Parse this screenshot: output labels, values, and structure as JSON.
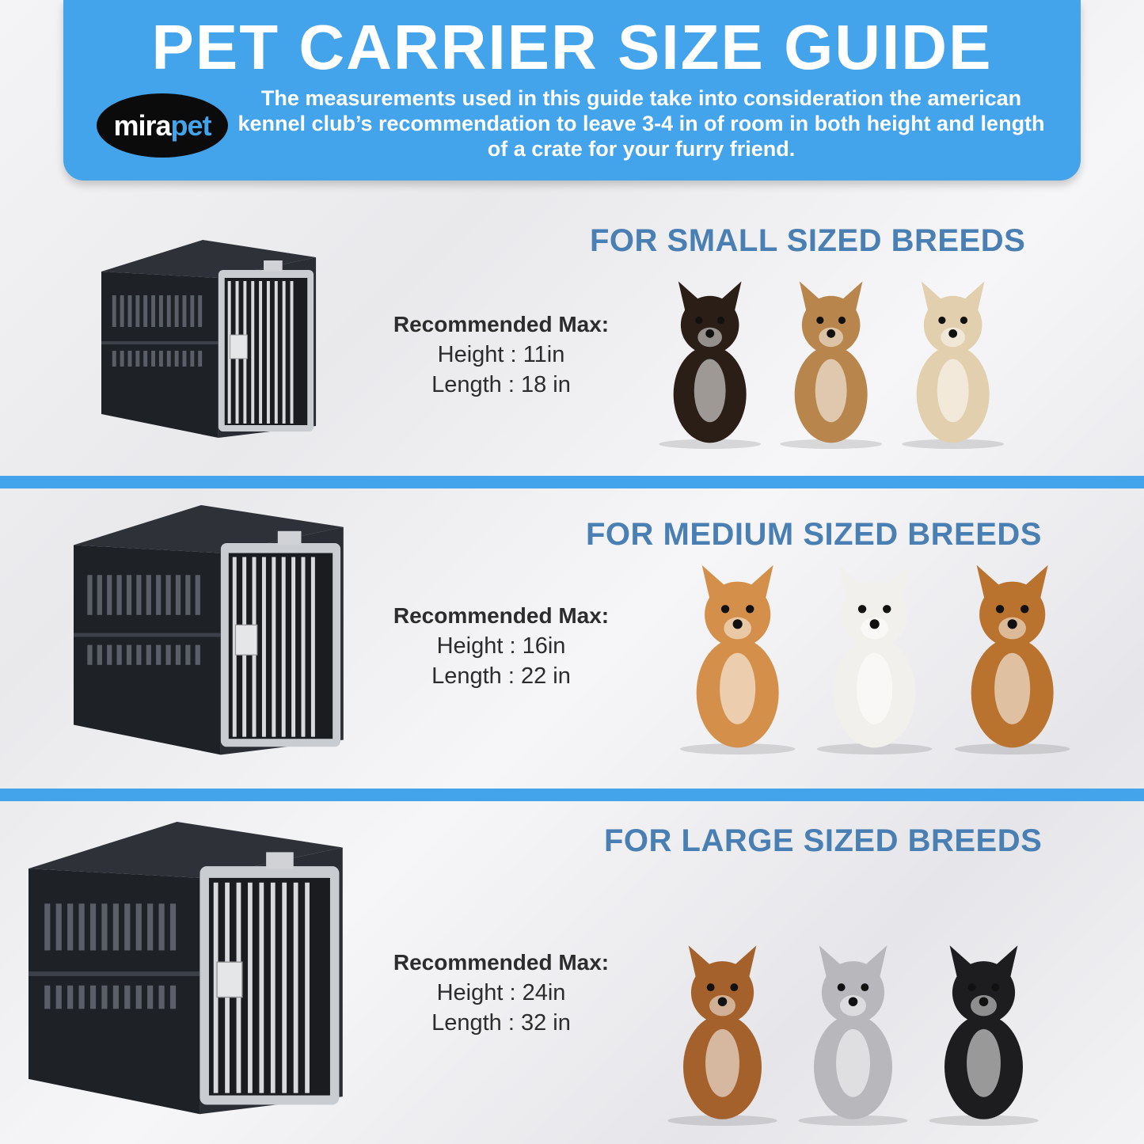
{
  "header": {
    "title": "PET CARRIER SIZE GUIDE",
    "logo": {
      "part1": "mira",
      "part2": "pet"
    },
    "subtitle": "The measurements used in this guide take into consideration the american kennel club’s recommendation to leave 3-4 in of room in both height and length of a crate for your furry friend."
  },
  "colors": {
    "accent": "#43a4eb",
    "heading": "#4a7fb3",
    "crate": "#1e2126",
    "text": "#2c2c2c"
  },
  "sections": [
    {
      "heading": "FOR SMALL SIZED BREEDS",
      "rec_label": "Recommended Max:",
      "height": "Height : 11in",
      "length": "Length : 18 in",
      "dogs": [
        "#2a1e16",
        "#b8864c",
        "#e2cfae"
      ]
    },
    {
      "heading": "FOR MEDIUM SIZED BREEDS",
      "rec_label": "Recommended Max:",
      "height": "Height : 16in",
      "length": "Length : 22 in",
      "dogs": [
        "#d4904a",
        "#f2f0ec",
        "#b9732f"
      ]
    },
    {
      "heading": "FOR LARGE SIZED BREEDS",
      "rec_label": "Recommended Max:",
      "height": "Height : 24in",
      "length": "Length : 32 in",
      "dogs": [
        "#a5612c",
        "#b8b8bc",
        "#1d1d1f"
      ]
    }
  ]
}
